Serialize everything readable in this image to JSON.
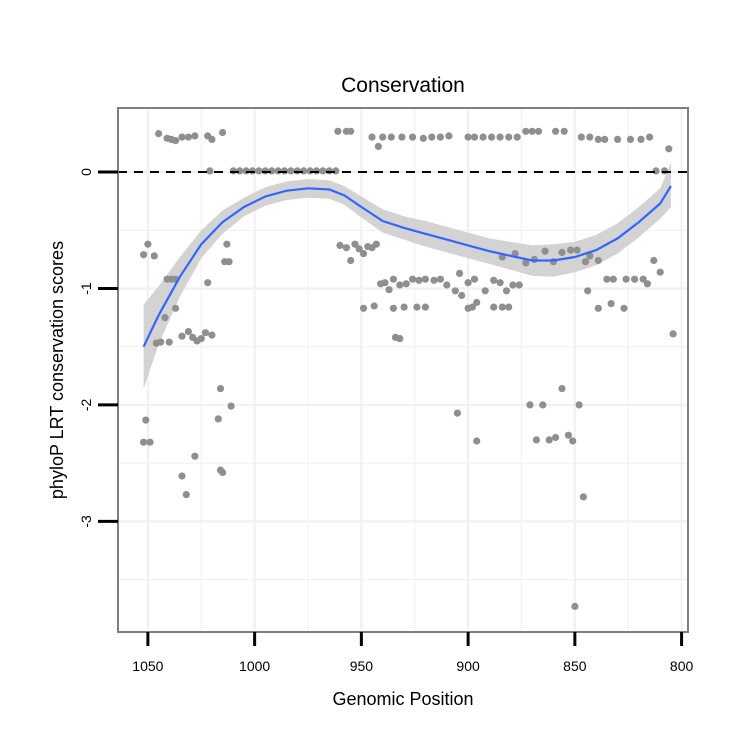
{
  "chart_data": {
    "type": "scatter",
    "title": "Conservation",
    "xlabel": "Genomic Position",
    "ylabel": "phyloP LRT conservation scores",
    "xlim": [
      1064,
      797
    ],
    "ylim": [
      -3.95,
      0.55
    ],
    "x_reversed": true,
    "x_ticks": [
      1050,
      1000,
      950,
      900,
      850,
      800
    ],
    "x_tick_labels": [
      "1050",
      "1000",
      "950",
      "900",
      "850",
      "800"
    ],
    "y_ticks": [
      0,
      -1,
      -2,
      -3
    ],
    "y_tick_labels": [
      "0",
      "-1",
      "-2",
      "-3"
    ],
    "grid": true,
    "reference_line": {
      "y": 0,
      "style": "dashed"
    },
    "point_color": "#8f8f8f",
    "smooth_color": "#3366ff",
    "band_color": "#d3d3d3",
    "points": [
      [
        1052,
        -0.71
      ],
      [
        1050,
        -0.62
      ],
      [
        1047,
        -0.72
      ],
      [
        1046,
        -1.47
      ],
      [
        1044,
        -1.46
      ],
      [
        1052,
        -2.32
      ],
      [
        1051,
        -2.13
      ],
      [
        1049,
        -2.32
      ],
      [
        1045,
        0.33
      ],
      [
        1041,
        0.29
      ],
      [
        1039,
        0.28
      ],
      [
        1037,
        0.27
      ],
      [
        1034,
        0.3
      ],
      [
        1031,
        0.3
      ],
      [
        1028,
        0.31
      ],
      [
        1022,
        0.31
      ],
      [
        1020,
        0.28
      ],
      [
        1015,
        0.34
      ],
      [
        1021,
        0.01
      ],
      [
        1041,
        -0.92
      ],
      [
        1039,
        -0.92
      ],
      [
        1037,
        -0.92
      ],
      [
        1042,
        -1.25
      ],
      [
        1040,
        -1.46
      ],
      [
        1037,
        -1.17
      ],
      [
        1034,
        -1.41
      ],
      [
        1031,
        -1.37
      ],
      [
        1029,
        -1.42
      ],
      [
        1027,
        -1.45
      ],
      [
        1025,
        -1.43
      ],
      [
        1023,
        -1.38
      ],
      [
        1020,
        -1.4
      ],
      [
        1022,
        -0.95
      ],
      [
        1013,
        -0.62
      ],
      [
        1014,
        -0.77
      ],
      [
        1012,
        -0.77
      ],
      [
        1016,
        -1.86
      ],
      [
        1017,
        -2.12
      ],
      [
        1011,
        -2.01
      ],
      [
        1016,
        -2.56
      ],
      [
        1015,
        -2.58
      ],
      [
        1028,
        -2.44
      ],
      [
        1034,
        -2.61
      ],
      [
        1032,
        -2.77
      ],
      [
        1010,
        0.01
      ],
      [
        1007,
        0.01
      ],
      [
        1004,
        0.01
      ],
      [
        1001,
        0.01
      ],
      [
        998,
        0.01
      ],
      [
        995,
        0.01
      ],
      [
        992,
        0.01
      ],
      [
        989,
        0.01
      ],
      [
        986,
        0.01
      ],
      [
        983,
        0.01
      ],
      [
        980,
        0.01
      ],
      [
        977,
        0.01
      ],
      [
        974,
        0.01
      ],
      [
        971,
        0.01
      ],
      [
        968,
        0.01
      ],
      [
        965,
        0.01
      ],
      [
        962,
        0.01
      ],
      [
        961,
        0.35
      ],
      [
        957,
        0.35
      ],
      [
        955,
        0.35
      ],
      [
        960,
        -0.63
      ],
      [
        957,
        -0.65
      ],
      [
        955,
        -0.76
      ],
      [
        953,
        -0.62
      ],
      [
        951,
        -0.66
      ],
      [
        949,
        -0.7
      ],
      [
        947,
        -0.64
      ],
      [
        945,
        -0.65
      ],
      [
        943,
        -0.62
      ],
      [
        941,
        -0.96
      ],
      [
        939,
        -0.95
      ],
      [
        937,
        -1.01
      ],
      [
        935,
        -0.92
      ],
      [
        932,
        -0.97
      ],
      [
        929,
        -0.96
      ],
      [
        926,
        -0.92
      ],
      [
        923,
        -0.93
      ],
      [
        920,
        -0.92
      ],
      [
        916,
        -0.93
      ],
      [
        913,
        -0.92
      ],
      [
        910,
        -0.97
      ],
      [
        949,
        -1.17
      ],
      [
        944,
        -1.15
      ],
      [
        935,
        -1.17
      ],
      [
        930,
        -1.16
      ],
      [
        924,
        -1.16
      ],
      [
        920,
        -1.16
      ],
      [
        934,
        -1.42
      ],
      [
        932,
        -1.43
      ],
      [
        945,
        0.3
      ],
      [
        942,
        0.22
      ],
      [
        940,
        0.3
      ],
      [
        936,
        0.3
      ],
      [
        931,
        0.3
      ],
      [
        926,
        0.3
      ],
      [
        921,
        0.29
      ],
      [
        917,
        0.3
      ],
      [
        913,
        0.3
      ],
      [
        909,
        0.31
      ],
      [
        904,
        -0.87
      ],
      [
        900,
        -0.95
      ],
      [
        897,
        -0.92
      ],
      [
        892,
        -1.02
      ],
      [
        888,
        -0.93
      ],
      [
        885,
        -0.95
      ],
      [
        882,
        -1.02
      ],
      [
        879,
        -0.97
      ],
      [
        876,
        -0.97
      ],
      [
        906,
        -1.02
      ],
      [
        903,
        -1.06
      ],
      [
        900,
        -1.17
      ],
      [
        896,
        -1.12
      ],
      [
        888,
        -1.16
      ],
      [
        884,
        -1.16
      ],
      [
        881,
        -1.16
      ],
      [
        898,
        -1.16
      ],
      [
        905,
        -2.07
      ],
      [
        896,
        -2.31
      ],
      [
        900,
        0.3
      ],
      [
        897,
        0.3
      ],
      [
        893,
        0.3
      ],
      [
        889,
        0.3
      ],
      [
        885,
        0.3
      ],
      [
        881,
        0.3
      ],
      [
        877,
        0.3
      ],
      [
        873,
        0.35
      ],
      [
        870,
        0.35
      ],
      [
        867,
        0.35
      ],
      [
        859,
        0.35
      ],
      [
        855,
        0.35
      ],
      [
        847,
        0.3
      ],
      [
        843,
        0.3
      ],
      [
        839,
        0.28
      ],
      [
        836,
        0.28
      ],
      [
        830,
        0.28
      ],
      [
        824,
        0.28
      ],
      [
        819,
        0.28
      ],
      [
        815,
        0.3
      ],
      [
        884,
        -0.73
      ],
      [
        878,
        -0.7
      ],
      [
        873,
        -0.78
      ],
      [
        869,
        -0.75
      ],
      [
        864,
        -0.68
      ],
      [
        860,
        -0.77
      ],
      [
        856,
        -0.69
      ],
      [
        852,
        -0.67
      ],
      [
        849,
        -0.67
      ],
      [
        845,
        -0.77
      ],
      [
        843,
        -0.72
      ],
      [
        839,
        -0.76
      ],
      [
        835,
        -0.92
      ],
      [
        832,
        -0.92
      ],
      [
        826,
        -0.92
      ],
      [
        822,
        -0.92
      ],
      [
        818,
        -0.92
      ],
      [
        816,
        -0.96
      ],
      [
        844,
        -1.02
      ],
      [
        839,
        -1.17
      ],
      [
        833,
        -1.13
      ],
      [
        827,
        -1.17
      ],
      [
        813,
        -0.76
      ],
      [
        810,
        -0.86
      ],
      [
        871,
        -2.0
      ],
      [
        868,
        -2.3
      ],
      [
        865,
        -2.0
      ],
      [
        862,
        -2.3
      ],
      [
        859,
        -2.28
      ],
      [
        856,
        -1.86
      ],
      [
        853,
        -2.26
      ],
      [
        851,
        -2.31
      ],
      [
        848,
        -2.0
      ],
      [
        846,
        -2.79
      ],
      [
        850,
        -3.73
      ],
      [
        812,
        0.01
      ],
      [
        808,
        0.01
      ],
      [
        806,
        0.2
      ],
      [
        804,
        -1.39
      ]
    ],
    "smooth": {
      "x": [
        1052,
        1045,
        1035,
        1025,
        1015,
        1005,
        995,
        985,
        975,
        965,
        958,
        950,
        940,
        930,
        920,
        910,
        900,
        890,
        880,
        870,
        860,
        850,
        840,
        830,
        820,
        810,
        805
      ],
      "y": [
        -1.5,
        -1.23,
        -0.9,
        -0.62,
        -0.43,
        -0.3,
        -0.21,
        -0.16,
        -0.14,
        -0.15,
        -0.2,
        -0.3,
        -0.42,
        -0.48,
        -0.53,
        -0.58,
        -0.63,
        -0.68,
        -0.72,
        -0.76,
        -0.76,
        -0.73,
        -0.67,
        -0.57,
        -0.43,
        -0.27,
        -0.12
      ],
      "lower": [
        -1.86,
        -1.48,
        -1.07,
        -0.74,
        -0.53,
        -0.38,
        -0.29,
        -0.24,
        -0.22,
        -0.23,
        -0.28,
        -0.39,
        -0.52,
        -0.58,
        -0.64,
        -0.69,
        -0.74,
        -0.79,
        -0.84,
        -0.89,
        -0.9,
        -0.86,
        -0.8,
        -0.7,
        -0.56,
        -0.4,
        -0.3
      ],
      "upper": [
        -1.14,
        -0.98,
        -0.73,
        -0.5,
        -0.33,
        -0.22,
        -0.13,
        -0.08,
        -0.06,
        -0.07,
        -0.12,
        -0.21,
        -0.32,
        -0.38,
        -0.42,
        -0.47,
        -0.52,
        -0.57,
        -0.6,
        -0.63,
        -0.62,
        -0.6,
        -0.54,
        -0.44,
        -0.3,
        -0.14,
        0.08
      ]
    }
  }
}
